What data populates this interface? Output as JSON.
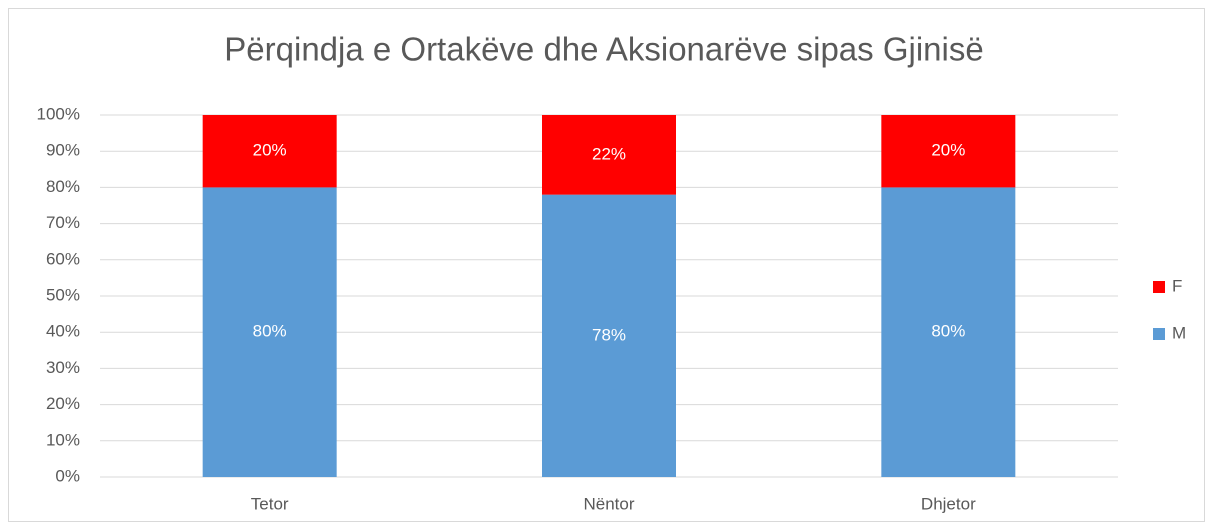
{
  "chart_data": {
    "type": "stacked_bar",
    "title": "Përqindja e Ortakëve dhe Aksionarëve sipas Gjinisë",
    "categories": [
      "Tetor",
      "Nëntor",
      "Dhjetor"
    ],
    "series": [
      {
        "name": "M",
        "color": "#5b9bd5",
        "values": [
          80,
          78,
          80
        ],
        "value_labels": [
          "80%",
          "78%",
          "80%"
        ]
      },
      {
        "name": "F",
        "color": "#ff0000",
        "values": [
          20,
          22,
          20
        ],
        "value_labels": [
          "20%",
          "22%",
          "20%"
        ]
      }
    ],
    "ylim": [
      0,
      100
    ],
    "yticks": [
      {
        "value": 0,
        "label": "0%"
      },
      {
        "value": 10,
        "label": "10%"
      },
      {
        "value": 20,
        "label": "20%"
      },
      {
        "value": 30,
        "label": "30%"
      },
      {
        "value": 40,
        "label": "40%"
      },
      {
        "value": 50,
        "label": "50%"
      },
      {
        "value": 60,
        "label": "60%"
      },
      {
        "value": 70,
        "label": "70%"
      },
      {
        "value": 80,
        "label": "80%"
      },
      {
        "value": 90,
        "label": "90%"
      },
      {
        "value": 100,
        "label": "100%"
      }
    ],
    "grid": true,
    "legend": "right"
  }
}
